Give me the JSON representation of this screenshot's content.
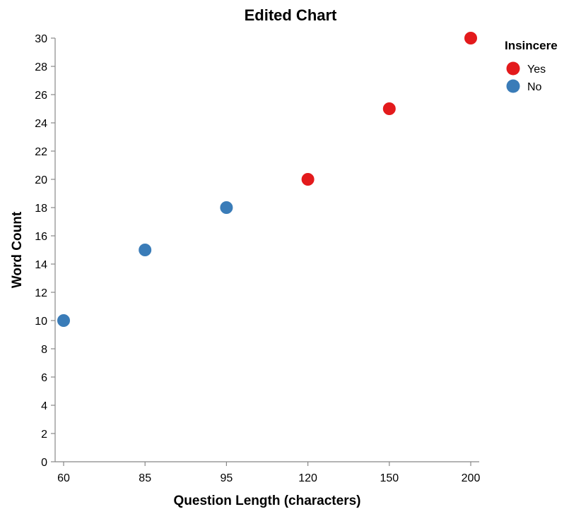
{
  "chart_data": {
    "type": "scatter",
    "title": "Edited Chart",
    "xlabel": "Question Length (characters)",
    "ylabel": "Word Count",
    "x_axis_type": "ordinal",
    "categories": [
      "60",
      "85",
      "95",
      "120",
      "150",
      "200"
    ],
    "ylim": [
      0,
      30
    ],
    "y_ticks": [
      0,
      2,
      4,
      6,
      8,
      10,
      12,
      14,
      16,
      18,
      20,
      22,
      24,
      26,
      28,
      30
    ],
    "grid": false,
    "legend": {
      "title": "Insincere",
      "placement": "top-right",
      "entries": [
        {
          "label": "Yes",
          "color": "#e31a1c"
        },
        {
          "label": "No",
          "color": "#3a7cb8"
        }
      ]
    },
    "series": [
      {
        "name": "Yes",
        "color": "#e31a1c",
        "points": [
          {
            "x": "120",
            "y": 20
          },
          {
            "x": "150",
            "y": 25
          },
          {
            "x": "200",
            "y": 30
          }
        ]
      },
      {
        "name": "No",
        "color": "#3a7cb8",
        "points": [
          {
            "x": "60",
            "y": 10
          },
          {
            "x": "85",
            "y": 15
          },
          {
            "x": "95",
            "y": 18
          }
        ]
      }
    ]
  }
}
